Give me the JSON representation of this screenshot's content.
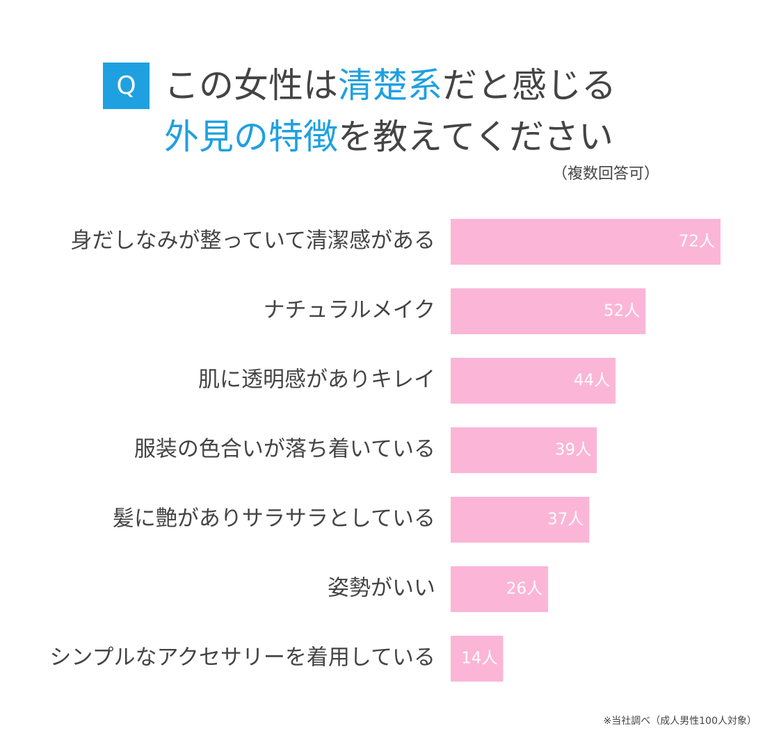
{
  "header": {
    "badge": "Q",
    "line1_a": "この女性は",
    "line1_hl": "清楚系",
    "line1_b": "だと感じる",
    "line2_hl": "外見の特徴",
    "line2_b": "を教えてください",
    "note": "（複数回答可）"
  },
  "colors": {
    "accent": "#1fa0e0",
    "bar": "#fbb6d7",
    "text": "#444444"
  },
  "chart_data": {
    "type": "bar",
    "orientation": "horizontal",
    "categories": [
      "身だしなみが整っていて清潔感がある",
      "ナチュラルメイク",
      "肌に透明感がありキレイ",
      "服装の色合いが落ち着いている",
      "髪に艶がありサラサラとしている",
      "姿勢がいい",
      "シンプルなアクセサリーを着用している"
    ],
    "values": [
      72,
      52,
      44,
      39,
      37,
      26,
      14
    ],
    "value_labels": [
      "72人",
      "52人",
      "44人",
      "39人",
      "37人",
      "26人",
      "14人"
    ],
    "grid": false
  },
  "source": "※当社調べ（成人男性100人対象）"
}
